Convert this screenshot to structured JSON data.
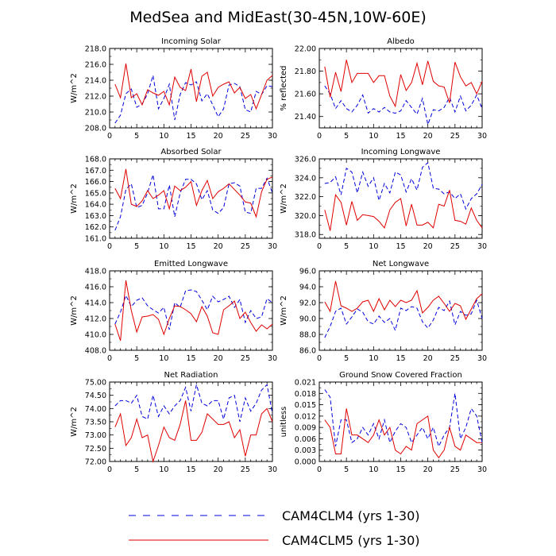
{
  "figure_title": "MedSea and MidEast(30-45N,10W-60E)",
  "legend": [
    {
      "name": "CAM4CLM4 (yrs 1-30)",
      "color": "#0000dd",
      "dash": "dashed"
    },
    {
      "name": "CAM4CLM5 (yrs 1-30)",
      "color": "#e00000",
      "dash": "solid"
    }
  ],
  "chart_data": [
    {
      "type": "line",
      "title": "Incoming Solar",
      "ylabel": "W/m^2",
      "xlim": [
        0,
        30
      ],
      "ylim": [
        208,
        218
      ],
      "xticks": [
        0,
        5,
        10,
        15,
        20,
        25,
        30
      ],
      "yticks": [
        "208.0",
        "210.0",
        "212.0",
        "214.0",
        "216.0",
        "218.0"
      ],
      "x": [
        1,
        2,
        3,
        4,
        5,
        6,
        7,
        8,
        9,
        10,
        11,
        12,
        13,
        14,
        15,
        16,
        17,
        18,
        19,
        20,
        21,
        22,
        23,
        24,
        25,
        26,
        27,
        28,
        29,
        30
      ],
      "series": [
        {
          "name": "CAM4CLM4 (yrs 1-30)",
          "values": [
            208.6,
            209.6,
            212.3,
            212.9,
            210.6,
            211.0,
            212.3,
            214.6,
            210.4,
            211.7,
            213.5,
            209.0,
            212.2,
            213.7,
            213.4,
            213.8,
            211.4,
            212.3,
            210.9,
            209.4,
            210.4,
            213.4,
            213.6,
            213.2,
            210.3,
            210.0,
            212.6,
            212.2,
            213.3,
            213.2
          ]
        },
        {
          "name": "CAM4CLM5 (yrs 1-30)",
          "values": [
            213.5,
            211.8,
            216.1,
            211.8,
            212.3,
            210.9,
            212.8,
            212.4,
            212.1,
            212.6,
            210.9,
            214.4,
            213.1,
            212.7,
            215.4,
            211.3,
            214.5,
            215.0,
            212.0,
            213.1,
            213.5,
            213.8,
            212.4,
            213.1,
            211.7,
            212.2,
            210.4,
            212.2,
            214.0,
            214.6
          ]
        }
      ]
    },
    {
      "type": "line",
      "title": "Albedo",
      "ylabel": "% reflected",
      "xlim": [
        0,
        30
      ],
      "ylim": [
        21.3,
        22.0
      ],
      "xticks": [
        0,
        5,
        10,
        15,
        20,
        25,
        30
      ],
      "yticks": [
        "21.40",
        "21.60",
        "21.80",
        "22.00"
      ],
      "x": [
        1,
        2,
        3,
        4,
        5,
        6,
        7,
        8,
        9,
        10,
        11,
        12,
        13,
        14,
        15,
        16,
        17,
        18,
        19,
        20,
        21,
        22,
        23,
        24,
        25,
        26,
        27,
        28,
        29,
        30
      ],
      "series": [
        {
          "name": "CAM4CLM4 (yrs 1-30)",
          "values": [
            21.67,
            21.6,
            21.47,
            21.54,
            21.47,
            21.44,
            21.5,
            21.59,
            21.43,
            21.47,
            21.44,
            21.48,
            21.44,
            21.43,
            21.45,
            21.54,
            21.48,
            21.42,
            21.56,
            21.33,
            21.46,
            21.45,
            21.48,
            21.57,
            21.44,
            21.58,
            21.45,
            21.5,
            21.59,
            21.47
          ]
        },
        {
          "name": "CAM4CLM5 (yrs 1-30)",
          "values": [
            21.84,
            21.57,
            21.79,
            21.62,
            21.9,
            21.7,
            21.78,
            21.78,
            21.78,
            21.7,
            21.76,
            21.76,
            21.58,
            21.49,
            21.77,
            21.63,
            21.7,
            21.87,
            21.68,
            21.89,
            21.71,
            21.67,
            21.66,
            21.52,
            21.88,
            21.75,
            21.67,
            21.7,
            21.6,
            21.71
          ]
        }
      ]
    },
    {
      "type": "line",
      "title": "Absorbed Solar",
      "ylabel": "W/m^2",
      "xlim": [
        0,
        30
      ],
      "ylim": [
        161,
        168
      ],
      "xticks": [
        0,
        5,
        10,
        15,
        20,
        25,
        30
      ],
      "yticks": [
        "161.0",
        "162.0",
        "163.0",
        "164.0",
        "165.0",
        "166.0",
        "167.0",
        "168.0"
      ],
      "x": [
        1,
        2,
        3,
        4,
        5,
        6,
        7,
        8,
        9,
        10,
        11,
        12,
        13,
        14,
        15,
        16,
        17,
        18,
        19,
        20,
        21,
        22,
        23,
        24,
        25,
        26,
        27,
        28,
        29,
        30
      ],
      "series": [
        {
          "name": "CAM4CLM4 (yrs 1-30)",
          "values": [
            161.7,
            162.9,
            165.3,
            165.8,
            163.7,
            163.9,
            165.0,
            166.6,
            163.6,
            163.6,
            165.7,
            162.9,
            165.0,
            166.2,
            166.2,
            165.8,
            164.4,
            165.2,
            163.5,
            163.2,
            163.7,
            165.8,
            165.9,
            165.6,
            163.3,
            163.2,
            165.4,
            165.4,
            166.3,
            165.0
          ]
        },
        {
          "name": "CAM4CLM5 (yrs 1-30)",
          "values": [
            165.4,
            164.5,
            167.1,
            164.0,
            163.8,
            164.3,
            165.2,
            164.5,
            164.8,
            165.2,
            163.6,
            165.6,
            165.2,
            165.5,
            166.0,
            163.9,
            165.2,
            166.1,
            164.5,
            165.1,
            165.4,
            165.8,
            165.3,
            164.8,
            164.2,
            164.1,
            162.9,
            165.1,
            166.2,
            166.4
          ]
        }
      ]
    },
    {
      "type": "line",
      "title": "Incoming Longwave",
      "ylabel": "W/m^2",
      "xlim": [
        0,
        30
      ],
      "ylim": [
        317.6,
        326
      ],
      "xticks": [
        0,
        5,
        10,
        15,
        20,
        25,
        30
      ],
      "yticks": [
        "318.0",
        "320.0",
        "322.0",
        "324.0",
        "326.0"
      ],
      "x": [
        1,
        2,
        3,
        4,
        5,
        6,
        7,
        8,
        9,
        10,
        11,
        12,
        13,
        14,
        15,
        16,
        17,
        18,
        19,
        20,
        21,
        22,
        23,
        24,
        25,
        26,
        27,
        28,
        29,
        30
      ],
      "series": [
        {
          "name": "CAM4CLM4 (yrs 1-30)",
          "values": [
            323.4,
            323.5,
            324.1,
            322.2,
            325.0,
            324.6,
            322.4,
            324.6,
            323.1,
            324.0,
            321.6,
            323.4,
            322.4,
            324.6,
            324.3,
            322.5,
            323.9,
            322.7,
            325.1,
            325.6,
            322.9,
            322.8,
            322.3,
            322.5,
            321.8,
            322.3,
            320.7,
            321.8,
            322.3,
            323.3
          ]
        },
        {
          "name": "CAM4CLM5 (yrs 1-30)",
          "values": [
            320.6,
            318.4,
            322.2,
            321.4,
            319.0,
            321.5,
            319.5,
            320.1,
            320.0,
            319.9,
            319.4,
            318.7,
            320.6,
            321.4,
            321.8,
            318.9,
            321.2,
            319.0,
            319.0,
            319.3,
            318.7,
            321.2,
            321.0,
            322.7,
            319.5,
            319.4,
            319.1,
            320.8,
            319.5,
            318.7
          ]
        }
      ]
    },
    {
      "type": "line",
      "title": "Emitted Longwave",
      "ylabel": "W/m^2",
      "xlim": [
        0,
        30
      ],
      "ylim": [
        408,
        418
      ],
      "xticks": [
        0,
        5,
        10,
        15,
        20,
        25,
        30
      ],
      "yticks": [
        "408.0",
        "410.0",
        "412.0",
        "414.0",
        "416.0",
        "418.0"
      ],
      "x": [
        1,
        2,
        3,
        4,
        5,
        6,
        7,
        8,
        9,
        10,
        11,
        12,
        13,
        14,
        15,
        16,
        17,
        18,
        19,
        20,
        21,
        22,
        23,
        24,
        25,
        26,
        27,
        28,
        29,
        30
      ],
      "series": [
        {
          "name": "CAM4CLM4 (yrs 1-30)",
          "values": [
            411.3,
            412.8,
            414.9,
            413.5,
            414.3,
            414.6,
            413.6,
            413.1,
            412.7,
            413.4,
            410.6,
            414.0,
            413.4,
            415.5,
            415.6,
            415.4,
            414.3,
            413.1,
            414.8,
            414.1,
            414.4,
            414.8,
            413.4,
            414.4,
            411.5,
            413.0,
            412.0,
            412.2,
            414.5,
            414.0
          ]
        },
        {
          "name": "CAM4CLM5 (yrs 1-30)",
          "values": [
            411.3,
            409.2,
            416.8,
            413.0,
            410.3,
            412.2,
            412.3,
            412.5,
            411.9,
            410.0,
            412.0,
            413.6,
            413.5,
            413.1,
            412.6,
            411.6,
            413.5,
            412.3,
            410.2,
            410.0,
            413.1,
            413.6,
            414.2,
            412.0,
            412.8,
            411.5,
            410.4,
            411.2,
            410.7,
            411.3
          ]
        }
      ]
    },
    {
      "type": "line",
      "title": "Net Longwave",
      "ylabel": "W/m^2",
      "xlim": [
        0,
        30
      ],
      "ylim": [
        86,
        96
      ],
      "xticks": [
        0,
        5,
        10,
        15,
        20,
        25,
        30
      ],
      "yticks": [
        "86.0",
        "88.0",
        "90.0",
        "92.0",
        "94.0",
        "96.0"
      ],
      "x": [
        1,
        2,
        3,
        4,
        5,
        6,
        7,
        8,
        9,
        10,
        11,
        12,
        13,
        14,
        15,
        16,
        17,
        18,
        19,
        20,
        21,
        22,
        23,
        24,
        25,
        26,
        27,
        28,
        29,
        30
      ],
      "series": [
        {
          "name": "CAM4CLM4 (yrs 1-30)",
          "values": [
            87.6,
            89.0,
            90.9,
            91.3,
            89.3,
            90.2,
            91.2,
            90.8,
            89.6,
            89.3,
            90.3,
            89.5,
            90.0,
            88.5,
            91.3,
            91.0,
            91.5,
            91.3,
            89.6,
            88.8,
            89.8,
            91.4,
            91.0,
            92.2,
            89.2,
            90.9,
            90.4,
            90.6,
            92.3,
            90.0
          ]
        },
        {
          "name": "CAM4CLM5 (yrs 1-30)",
          "values": [
            92.1,
            90.9,
            94.7,
            91.6,
            91.3,
            90.9,
            91.3,
            92.1,
            92.3,
            90.9,
            92.5,
            91.1,
            92.3,
            91.5,
            92.3,
            92.0,
            92.3,
            93.5,
            90.7,
            91.4,
            92.3,
            92.8,
            91.9,
            90.9,
            91.9,
            91.6,
            89.9,
            91.2,
            92.5,
            93.1
          ]
        }
      ]
    },
    {
      "type": "line",
      "title": "Net Radiation",
      "ylabel": "W/m^2",
      "xlim": [
        0,
        30
      ],
      "ylim": [
        72,
        75
      ],
      "xticks": [
        0,
        5,
        10,
        15,
        20,
        25,
        30
      ],
      "yticks": [
        "72.00",
        "72.50",
        "73.00",
        "73.50",
        "74.00",
        "74.50",
        "75.00"
      ],
      "x": [
        1,
        2,
        3,
        4,
        5,
        6,
        7,
        8,
        9,
        10,
        11,
        12,
        13,
        14,
        15,
        16,
        17,
        18,
        19,
        20,
        21,
        22,
        23,
        24,
        25,
        26,
        27,
        28,
        29,
        30
      ],
      "series": [
        {
          "name": "CAM4CLM4 (yrs 1-30)",
          "values": [
            74.1,
            74.3,
            74.3,
            74.2,
            74.5,
            73.7,
            73.6,
            74.5,
            73.7,
            74.1,
            73.8,
            74.1,
            74.3,
            74.8,
            73.9,
            74.9,
            74.2,
            74.1,
            74.3,
            74.3,
            73.6,
            74.4,
            74.5,
            73.5,
            74.4,
            73.9,
            74.2,
            74.7,
            74.9,
            73.8
          ]
        },
        {
          "name": "CAM4CLM5 (yrs 1-30)",
          "values": [
            73.3,
            73.8,
            72.6,
            72.9,
            73.6,
            72.9,
            73.0,
            72.0,
            72.6,
            73.3,
            72.9,
            72.8,
            73.4,
            74.3,
            72.8,
            72.8,
            73.1,
            73.8,
            73.6,
            73.4,
            73.4,
            73.5,
            72.9,
            73.2,
            72.2,
            73.0,
            73.0,
            73.8,
            74.0,
            73.5
          ]
        }
      ]
    },
    {
      "type": "line",
      "title": "Ground Snow Covered Fraction",
      "ylabel": "unitless",
      "xlim": [
        0,
        30
      ],
      "ylim": [
        0,
        0.021
      ],
      "xticks": [
        0,
        5,
        10,
        15,
        20,
        25,
        30
      ],
      "yticks": [
        "0.000",
        "0.003",
        "0.006",
        "0.009",
        "0.012",
        "0.015",
        "0.018",
        "0.021"
      ],
      "x": [
        1,
        2,
        3,
        4,
        5,
        6,
        7,
        8,
        9,
        10,
        11,
        12,
        13,
        14,
        15,
        16,
        17,
        18,
        19,
        20,
        21,
        22,
        23,
        24,
        25,
        26,
        27,
        28,
        29,
        30
      ],
      "series": [
        {
          "name": "CAM4CLM4 (yrs 1-30)",
          "values": [
            0.019,
            0.017,
            0.004,
            0.011,
            0.011,
            0.005,
            0.006,
            0.009,
            0.007,
            0.01,
            0.006,
            0.011,
            0.005,
            0.008,
            0.01,
            0.009,
            0.005,
            0.007,
            0.009,
            0.006,
            0.009,
            0.004,
            0.007,
            0.009,
            0.018,
            0.006,
            0.009,
            0.014,
            0.012,
            0.005
          ]
        },
        {
          "name": "CAM4CLM5 (yrs 1-30)",
          "values": [
            0.011,
            0.009,
            0.002,
            0.002,
            0.014,
            0.007,
            0.007,
            0.006,
            0.005,
            0.007,
            0.011,
            0.007,
            0.009,
            0.003,
            0.002,
            0.004,
            0.003,
            0.01,
            0.011,
            0.012,
            0.003,
            0.001,
            0.003,
            0.009,
            0.004,
            0.003,
            0.007,
            0.006,
            0.005,
            0.005
          ]
        }
      ]
    }
  ]
}
